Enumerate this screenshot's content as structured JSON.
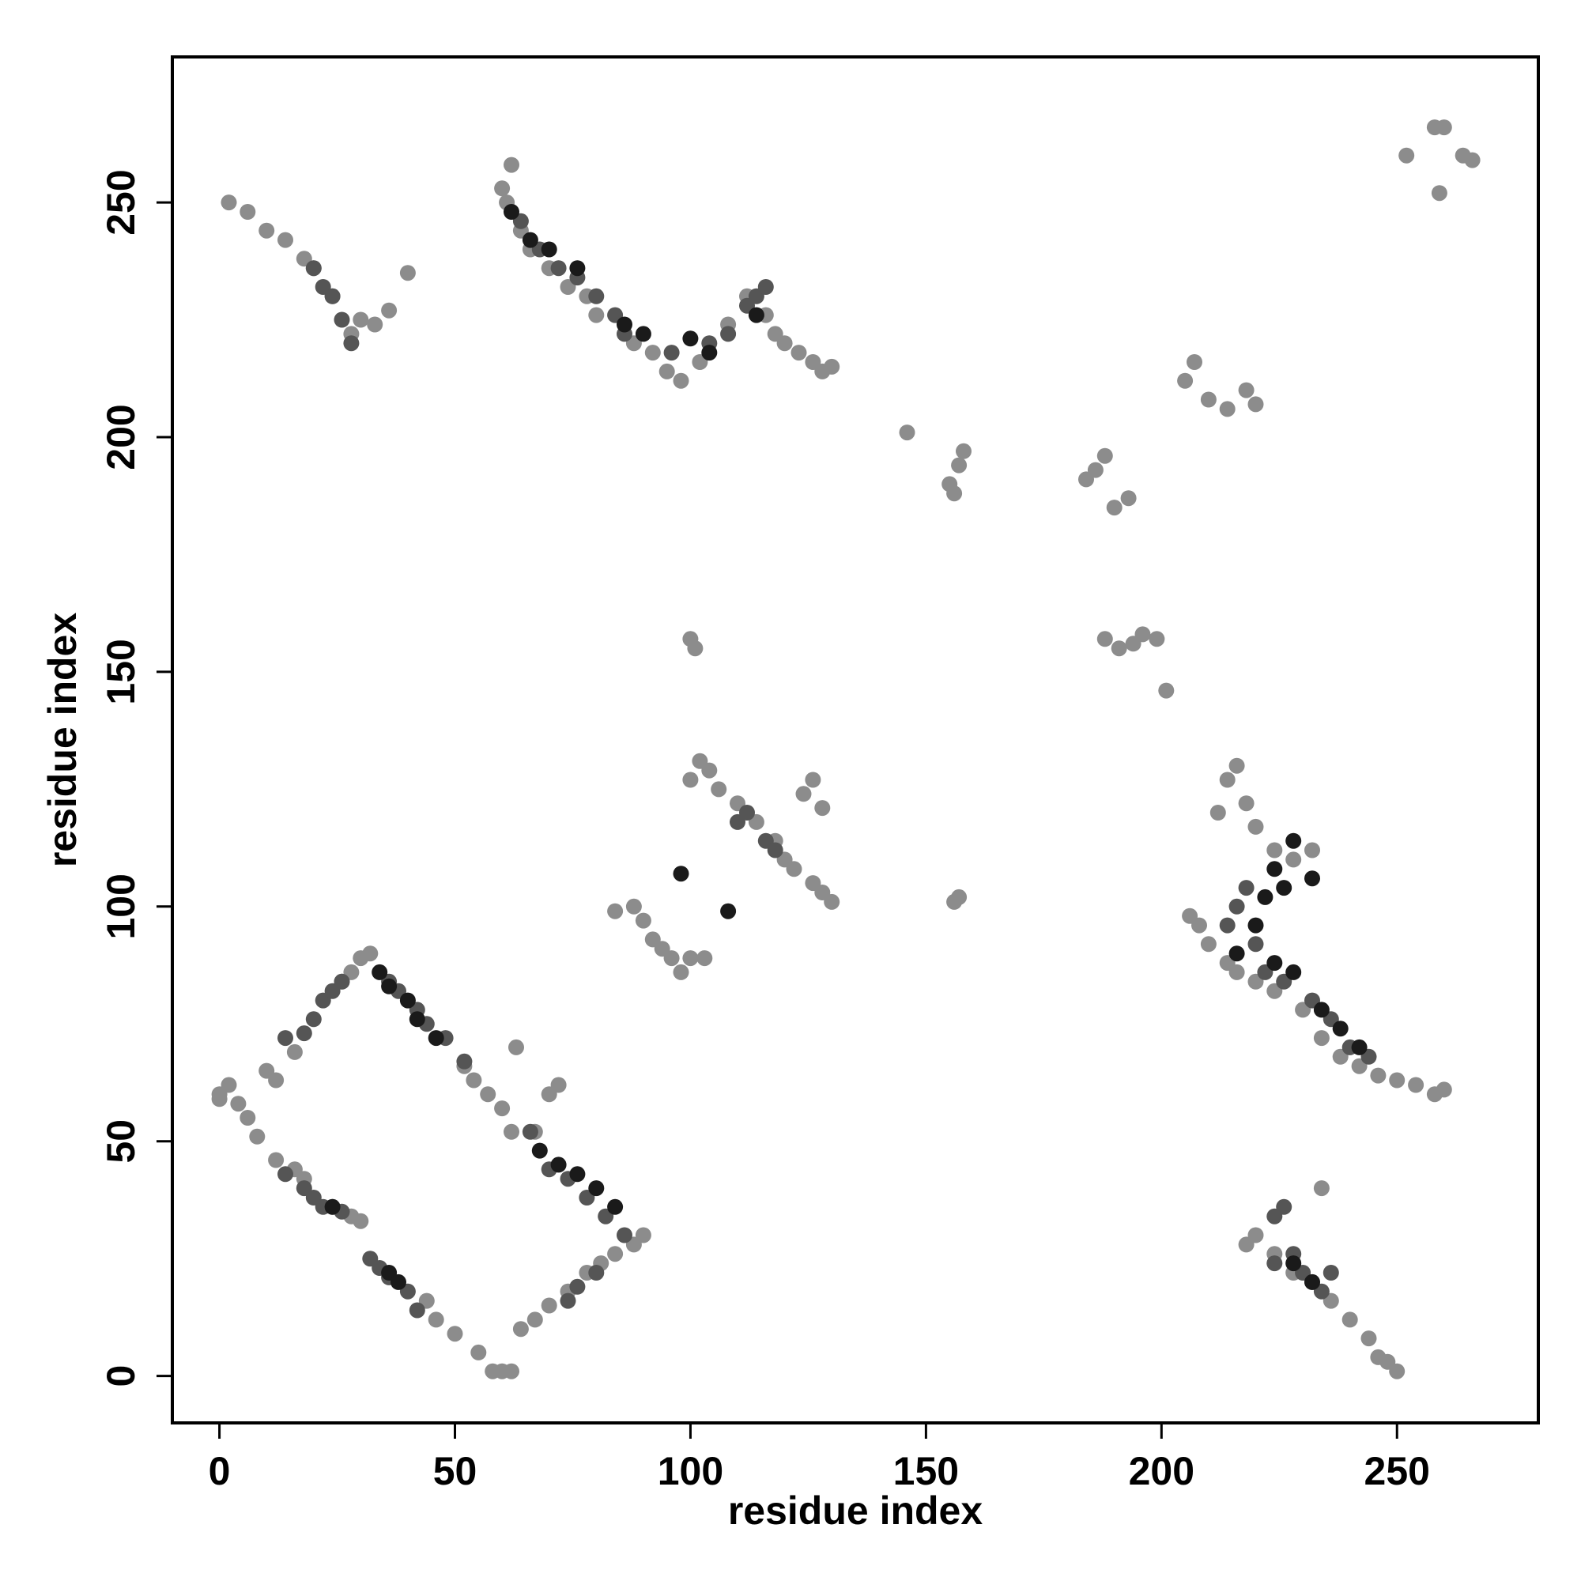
{
  "chart_data": {
    "type": "scatter",
    "title": "",
    "xlabel": "residue index",
    "ylabel": "residue index",
    "xlim": [
      -10,
      280
    ],
    "ylim": [
      -10,
      281
    ],
    "xticks": [
      0,
      50,
      100,
      150,
      200,
      250
    ],
    "yticks": [
      0,
      50,
      100,
      150,
      200,
      250
    ],
    "grid": false,
    "legend": "none",
    "colors": {
      "dark": "#1a1a1a",
      "mid": "#555555",
      "light": "#8c8c8c"
    },
    "series": [
      {
        "shade": "light",
        "points": [
          [
            0,
            60
          ],
          [
            2,
            62
          ],
          [
            4,
            58
          ],
          [
            6,
            55
          ],
          [
            10,
            65
          ],
          [
            12,
            63
          ],
          [
            16,
            69
          ],
          [
            0,
            59
          ],
          [
            8,
            51
          ],
          [
            12,
            46
          ],
          [
            16,
            44
          ],
          [
            18,
            42
          ],
          [
            24,
            36
          ],
          [
            28,
            34
          ],
          [
            30,
            33
          ],
          [
            44,
            16
          ],
          [
            46,
            12
          ],
          [
            50,
            9
          ],
          [
            55,
            5
          ],
          [
            58,
            1
          ],
          [
            60,
            1
          ],
          [
            62,
            1
          ],
          [
            64,
            10
          ],
          [
            67,
            12
          ],
          [
            70,
            15
          ],
          [
            74,
            18
          ],
          [
            78,
            22
          ],
          [
            81,
            24
          ],
          [
            84,
            26
          ],
          [
            88,
            28
          ],
          [
            90,
            30
          ],
          [
            52,
            66
          ],
          [
            54,
            63
          ],
          [
            57,
            60
          ],
          [
            60,
            57
          ],
          [
            62,
            52
          ],
          [
            63,
            70
          ],
          [
            67,
            52
          ],
          [
            70,
            60
          ],
          [
            72,
            62
          ],
          [
            28,
            86
          ],
          [
            30,
            89
          ],
          [
            32,
            90
          ],
          [
            26,
            84
          ],
          [
            2,
            250
          ],
          [
            6,
            248
          ],
          [
            10,
            244
          ],
          [
            14,
            242
          ],
          [
            18,
            238
          ],
          [
            20,
            236
          ],
          [
            24,
            230
          ],
          [
            28,
            222
          ],
          [
            30,
            225
          ],
          [
            33,
            224
          ],
          [
            36,
            227
          ],
          [
            40,
            235
          ],
          [
            60,
            253
          ],
          [
            62,
            258
          ],
          [
            61,
            250
          ],
          [
            64,
            244
          ],
          [
            66,
            240
          ],
          [
            70,
            236
          ],
          [
            74,
            232
          ],
          [
            78,
            230
          ],
          [
            80,
            226
          ],
          [
            88,
            220
          ],
          [
            92,
            218
          ],
          [
            95,
            214
          ],
          [
            98,
            212
          ],
          [
            102,
            216
          ],
          [
            108,
            224
          ],
          [
            112,
            230
          ],
          [
            116,
            226
          ],
          [
            118,
            222
          ],
          [
            120,
            220
          ],
          [
            123,
            218
          ],
          [
            126,
            216
          ],
          [
            128,
            214
          ],
          [
            130,
            215
          ],
          [
            146,
            201
          ],
          [
            155,
            190
          ],
          [
            157,
            194
          ],
          [
            158,
            197
          ],
          [
            156,
            188
          ],
          [
            184,
            191
          ],
          [
            186,
            193
          ],
          [
            188,
            196
          ],
          [
            190,
            185
          ],
          [
            193,
            187
          ],
          [
            205,
            212
          ],
          [
            207,
            216
          ],
          [
            210,
            208
          ],
          [
            214,
            206
          ],
          [
            218,
            210
          ],
          [
            220,
            207
          ],
          [
            188,
            157
          ],
          [
            191,
            155
          ],
          [
            194,
            156
          ],
          [
            196,
            158
          ],
          [
            199,
            157
          ],
          [
            201,
            146
          ],
          [
            100,
            157
          ],
          [
            101,
            155
          ],
          [
            156,
            101
          ],
          [
            157,
            102
          ],
          [
            84,
            99
          ],
          [
            88,
            100
          ],
          [
            90,
            97
          ],
          [
            92,
            93
          ],
          [
            94,
            91
          ],
          [
            96,
            89
          ],
          [
            98,
            86
          ],
          [
            100,
            89
          ],
          [
            103,
            89
          ],
          [
            100,
            127
          ],
          [
            102,
            131
          ],
          [
            104,
            129
          ],
          [
            106,
            125
          ],
          [
            110,
            122
          ],
          [
            114,
            118
          ],
          [
            118,
            114
          ],
          [
            120,
            110
          ],
          [
            122,
            108
          ],
          [
            126,
            105
          ],
          [
            128,
            103
          ],
          [
            130,
            101
          ],
          [
            124,
            124
          ],
          [
            126,
            127
          ],
          [
            128,
            121
          ],
          [
            212,
            120
          ],
          [
            214,
            127
          ],
          [
            216,
            130
          ],
          [
            218,
            122
          ],
          [
            220,
            117
          ],
          [
            224,
            112
          ],
          [
            228,
            110
          ],
          [
            232,
            112
          ],
          [
            206,
            98
          ],
          [
            208,
            96
          ],
          [
            210,
            92
          ],
          [
            214,
            88
          ],
          [
            216,
            86
          ],
          [
            220,
            84
          ],
          [
            224,
            82
          ],
          [
            230,
            78
          ],
          [
            234,
            72
          ],
          [
            238,
            68
          ],
          [
            242,
            66
          ],
          [
            246,
            64
          ],
          [
            250,
            63
          ],
          [
            254,
            62
          ],
          [
            258,
            60
          ],
          [
            260,
            61
          ],
          [
            218,
            28
          ],
          [
            220,
            30
          ],
          [
            224,
            26
          ],
          [
            228,
            22
          ],
          [
            232,
            20
          ],
          [
            236,
            16
          ],
          [
            240,
            12
          ],
          [
            244,
            8
          ],
          [
            246,
            4
          ],
          [
            248,
            3
          ],
          [
            250,
            1
          ],
          [
            234,
            40
          ],
          [
            252,
            260
          ],
          [
            258,
            266
          ],
          [
            260,
            266
          ],
          [
            264,
            260
          ],
          [
            266,
            259
          ],
          [
            259,
            252
          ]
        ]
      },
      {
        "shade": "mid",
        "points": [
          [
            20,
            76
          ],
          [
            22,
            80
          ],
          [
            24,
            82
          ],
          [
            26,
            84
          ],
          [
            14,
            72
          ],
          [
            18,
            73
          ],
          [
            14,
            43
          ],
          [
            18,
            40
          ],
          [
            20,
            38
          ],
          [
            22,
            36
          ],
          [
            26,
            35
          ],
          [
            32,
            25
          ],
          [
            34,
            23
          ],
          [
            36,
            21
          ],
          [
            40,
            18
          ],
          [
            42,
            14
          ],
          [
            66,
            52
          ],
          [
            70,
            44
          ],
          [
            74,
            42
          ],
          [
            78,
            38
          ],
          [
            82,
            34
          ],
          [
            86,
            30
          ],
          [
            74,
            16
          ],
          [
            76,
            19
          ],
          [
            80,
            22
          ],
          [
            36,
            84
          ],
          [
            38,
            82
          ],
          [
            42,
            78
          ],
          [
            44,
            75
          ],
          [
            48,
            72
          ],
          [
            52,
            67
          ],
          [
            20,
            236
          ],
          [
            22,
            232
          ],
          [
            24,
            230
          ],
          [
            26,
            225
          ],
          [
            28,
            220
          ],
          [
            64,
            246
          ],
          [
            68,
            240
          ],
          [
            72,
            236
          ],
          [
            76,
            234
          ],
          [
            80,
            230
          ],
          [
            84,
            226
          ],
          [
            86,
            222
          ],
          [
            96,
            218
          ],
          [
            104,
            220
          ],
          [
            108,
            222
          ],
          [
            112,
            228
          ],
          [
            114,
            230
          ],
          [
            116,
            232
          ],
          [
            110,
            118
          ],
          [
            112,
            120
          ],
          [
            116,
            114
          ],
          [
            118,
            112
          ],
          [
            214,
            96
          ],
          [
            216,
            100
          ],
          [
            218,
            104
          ],
          [
            220,
            92
          ],
          [
            222,
            86
          ],
          [
            226,
            84
          ],
          [
            232,
            80
          ],
          [
            236,
            76
          ],
          [
            240,
            70
          ],
          [
            244,
            68
          ],
          [
            224,
            24
          ],
          [
            228,
            26
          ],
          [
            230,
            22
          ],
          [
            234,
            18
          ],
          [
            236,
            22
          ],
          [
            224,
            34
          ],
          [
            226,
            36
          ]
        ]
      },
      {
        "shade": "dark",
        "points": [
          [
            34,
            86
          ],
          [
            36,
            83
          ],
          [
            40,
            80
          ],
          [
            42,
            76
          ],
          [
            46,
            72
          ],
          [
            68,
            48
          ],
          [
            72,
            45
          ],
          [
            76,
            43
          ],
          [
            80,
            40
          ],
          [
            84,
            36
          ],
          [
            24,
            36
          ],
          [
            36,
            22
          ],
          [
            38,
            20
          ],
          [
            62,
            248
          ],
          [
            66,
            242
          ],
          [
            70,
            240
          ],
          [
            76,
            236
          ],
          [
            86,
            224
          ],
          [
            90,
            222
          ],
          [
            100,
            221
          ],
          [
            104,
            218
          ],
          [
            114,
            226
          ],
          [
            98,
            107
          ],
          [
            108,
            99
          ],
          [
            216,
            90
          ],
          [
            220,
            96
          ],
          [
            222,
            102
          ],
          [
            224,
            108
          ],
          [
            226,
            104
          ],
          [
            228,
            114
          ],
          [
            232,
            106
          ],
          [
            224,
            88
          ],
          [
            228,
            86
          ],
          [
            234,
            78
          ],
          [
            238,
            74
          ],
          [
            242,
            70
          ],
          [
            228,
            24
          ],
          [
            232,
            20
          ]
        ]
      }
    ]
  }
}
